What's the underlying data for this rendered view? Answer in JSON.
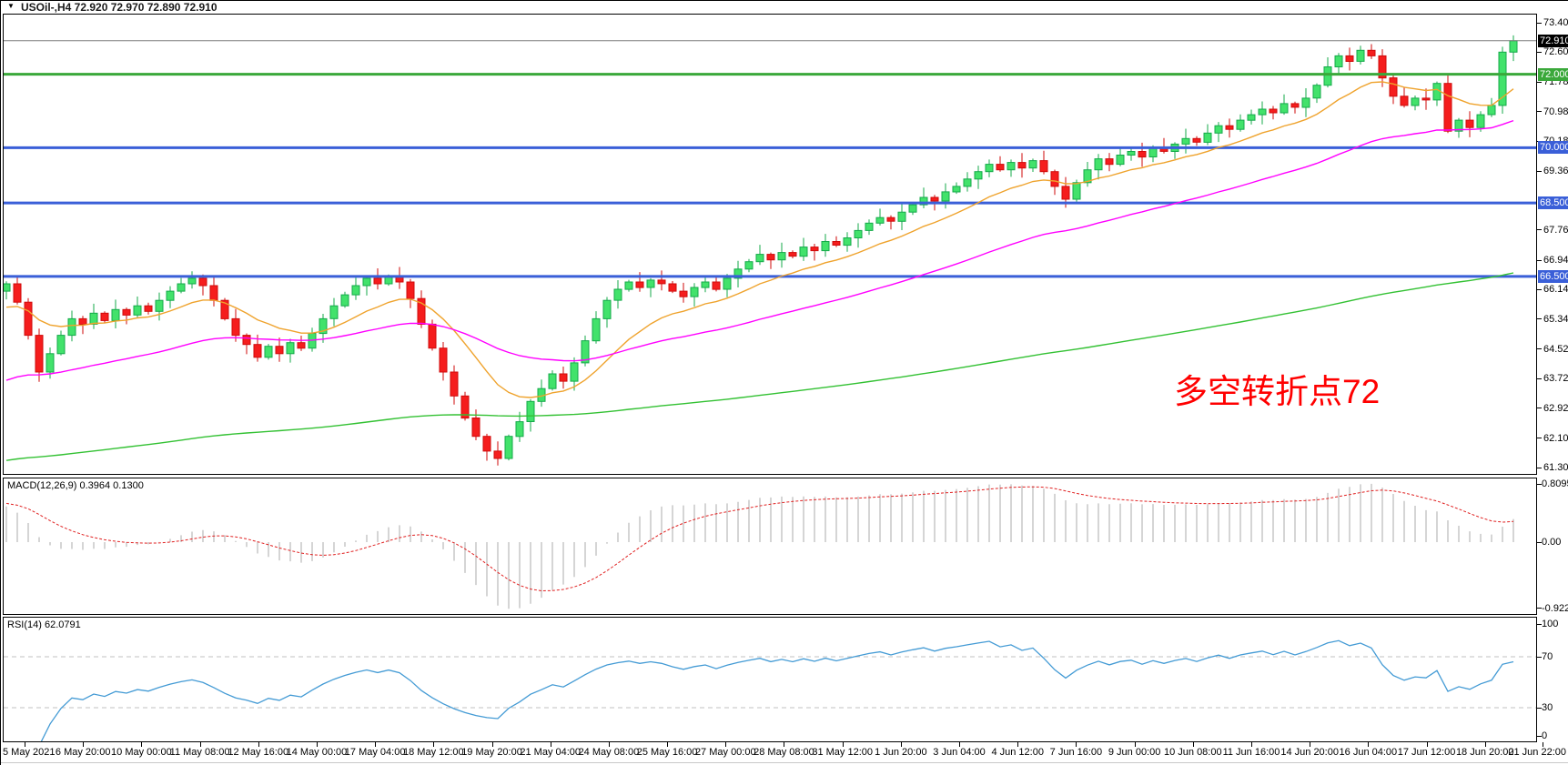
{
  "header": {
    "symbol_line": "USOil-,H4   72.920 72.970 72.890 72.910",
    "dropdown_icon": "▼"
  },
  "colors": {
    "up_fill": "#42e26b",
    "up_stroke": "#14a94a",
    "dn_fill": "#f51d1d",
    "dn_stroke": "#cf0a0a",
    "blue_level": "#3a5fd8",
    "green_level": "#3aa83a",
    "current_price_line": "#7f7f7f",
    "ma_fast": "#efa32d",
    "ma_mid": "#ff00ff",
    "ma_slow": "#33c133",
    "macd_bar": "#ababab",
    "macd_signal": "#e02020",
    "rsi_line": "#449bd5",
    "rsi_level": "#c0c0c0",
    "badge_current_bg": "#000000",
    "badge_green_bg": "#3aa83a",
    "badge_blue_bg": "#3a5fd8"
  },
  "price_axis": {
    "labels": [
      "73.400",
      "72.600",
      "71.780",
      "70.980",
      "70.180",
      "69.360",
      "67.760",
      "66.940",
      "66.140",
      "65.340",
      "64.520",
      "63.720",
      "62.920",
      "62.100",
      "61.300"
    ],
    "badges": [
      {
        "text": "72.910",
        "value": 72.91,
        "bg": "#000000"
      },
      {
        "text": "72.000",
        "value": 72.0,
        "bg": "#3aa83a"
      },
      {
        "text": "70.000",
        "value": 70.0,
        "bg": "#3a5fd8"
      },
      {
        "text": "68.500",
        "value": 68.5,
        "bg": "#3a5fd8"
      },
      {
        "text": "66.500",
        "value": 66.5,
        "bg": "#3a5fd8"
      }
    ]
  },
  "chart_data": {
    "type": "candlestick",
    "title": "USOil-,H4",
    "main": {
      "price_range_top": 73.4,
      "price_range_bottom": 61.3,
      "annotation": {
        "text": "多空转折点72",
        "color": "#ff0000"
      },
      "hlines": [
        {
          "price": 72.91,
          "color": "#7f7f7f",
          "w": 1,
          "name": "current-price"
        },
        {
          "price": 72.0,
          "color": "#3aa83a",
          "w": 3,
          "name": "green-level-72"
        },
        {
          "price": 70.0,
          "color": "#3a5fd8",
          "w": 3,
          "name": "blue-level-70"
        },
        {
          "price": 68.5,
          "color": "#3a5fd8",
          "w": 3,
          "name": "blue-level-68.5"
        },
        {
          "price": 66.5,
          "color": "#3a5fd8",
          "w": 3,
          "name": "blue-level-66.5"
        }
      ],
      "moving_averages": [
        {
          "name": "ma-fast-orange",
          "color": "#efa32d",
          "alpha": 0.15,
          "seed": 65.55
        },
        {
          "name": "ma-mid-magenta",
          "color": "#ff00ff",
          "alpha": 0.045,
          "seed": 63.55
        },
        {
          "name": "ma-slow-green",
          "color": "#33c133",
          "alpha": 0.0095,
          "seed": 61.45
        }
      ],
      "candles": {
        "first_open": 66.1,
        "closes": [
          66.3,
          65.8,
          64.9,
          63.9,
          64.4,
          64.9,
          65.35,
          65.2,
          65.5,
          65.3,
          65.6,
          65.45,
          65.7,
          65.55,
          65.85,
          66.1,
          66.3,
          66.45,
          66.25,
          65.85,
          65.35,
          64.9,
          64.65,
          64.3,
          64.6,
          64.4,
          64.7,
          64.55,
          64.95,
          65.35,
          65.7,
          66.0,
          66.25,
          66.45,
          66.3,
          66.5,
          66.35,
          65.9,
          65.2,
          64.55,
          63.9,
          63.25,
          62.65,
          62.15,
          61.75,
          61.55,
          62.15,
          62.55,
          63.1,
          63.45,
          63.85,
          63.65,
          64.15,
          64.75,
          65.35,
          65.85,
          66.15,
          66.35,
          66.2,
          66.4,
          66.3,
          66.1,
          65.95,
          66.2,
          66.35,
          66.15,
          66.45,
          66.7,
          66.9,
          67.1,
          66.95,
          67.15,
          67.05,
          67.3,
          67.2,
          67.45,
          67.35,
          67.55,
          67.75,
          67.95,
          68.1,
          68.0,
          68.25,
          68.45,
          68.65,
          68.55,
          68.8,
          68.95,
          69.15,
          69.35,
          69.55,
          69.4,
          69.6,
          69.45,
          69.65,
          69.35,
          68.95,
          68.6,
          69.05,
          69.4,
          69.7,
          69.55,
          69.8,
          69.9,
          69.75,
          70.0,
          69.9,
          70.1,
          70.25,
          70.15,
          70.4,
          70.6,
          70.5,
          70.75,
          70.9,
          71.05,
          70.95,
          71.2,
          71.1,
          71.35,
          71.7,
          72.2,
          72.5,
          72.35,
          72.65,
          72.5,
          71.9,
          71.4,
          71.15,
          71.35,
          71.3,
          71.75,
          70.45,
          70.75,
          70.55,
          70.9,
          71.15,
          72.6,
          72.91
        ]
      }
    },
    "macd": {
      "label": "MACD(12,26,9) 0.3964 0.1300",
      "params": "12,26,9",
      "current_macd": 0.3964,
      "current_signal": 0.13,
      "axis_labels": [
        "0.8095",
        "0.00",
        "-0.9226"
      ],
      "axis_values": [
        0.8095,
        0,
        -0.9226
      ]
    },
    "rsi": {
      "label": "RSI(14) 62.0791",
      "period": 14,
      "current_value": 62.0791,
      "axis_labels": [
        "100",
        "70",
        "30",
        "0"
      ],
      "axis_values": [
        100,
        70,
        30,
        0
      ],
      "levels": [
        70,
        30
      ]
    },
    "time_axis": [
      "5 May 2021",
      "6 May 20:00",
      "10 May 00:00",
      "11 May 08:00",
      "12 May 16:00",
      "14 May 00:00",
      "17 May 04:00",
      "18 May 12:00",
      "19 May 20:00",
      "21 May 04:00",
      "24 May 08:00",
      "25 May 16:00",
      "27 May 00:00",
      "28 May 08:00",
      "31 May 12:00",
      "1 Jun 20:00",
      "3 Jun 04:00",
      "4 Jun 12:00",
      "7 Jun 16:00",
      "9 Jun 00:00",
      "10 Jun 08:00",
      "11 Jun 16:00",
      "14 Jun 20:00",
      "16 Jun 04:00",
      "17 Jun 12:00",
      "18 Jun 20:00",
      "21 Jun 22:00"
    ]
  }
}
